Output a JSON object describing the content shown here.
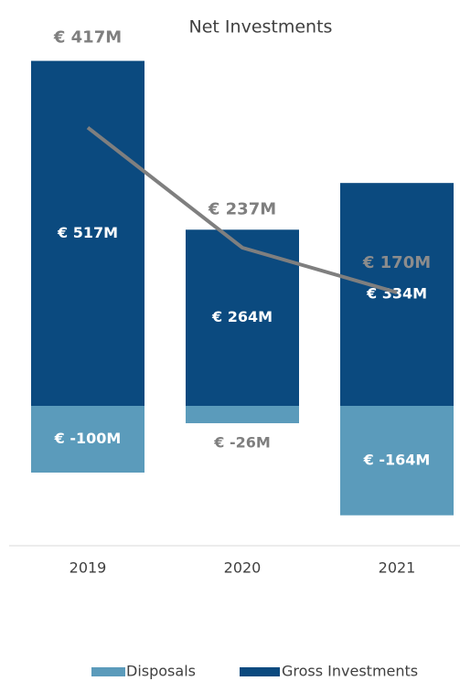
{
  "chart_data": {
    "type": "bar",
    "title": "Net Investments",
    "categories": [
      "2019",
      "2020",
      "2021"
    ],
    "ylim": [
      -200,
      550
    ],
    "stacked": true,
    "series": [
      {
        "name": "Disposals",
        "color": "#5b9bbb",
        "values": [
          -100,
          -26,
          -164
        ],
        "value_labels": [
          "€ -100M",
          "€ -26M",
          "€ -164M"
        ]
      },
      {
        "name": "Gross Investments",
        "color": "#0b4a7f",
        "values": [
          517,
          264,
          334
        ],
        "value_labels": [
          "€ 517M",
          "€ 264M",
          "€ 334M"
        ]
      }
    ],
    "line": {
      "color": "#7f7f7f",
      "values": [
        417,
        237,
        170
      ],
      "value_labels": [
        "€ 417M",
        "€ 237M",
        "€ 170M"
      ]
    }
  }
}
